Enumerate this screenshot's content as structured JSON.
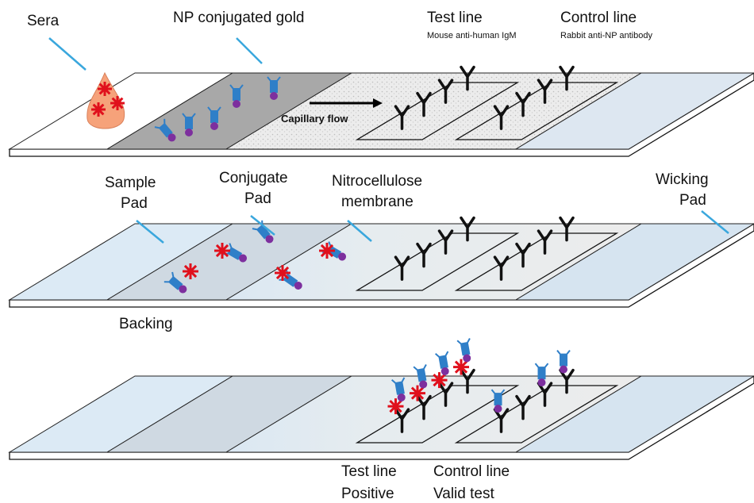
{
  "panel_1": {
    "sera": "Sera",
    "np_conjugated_gold": "NP conjugated gold",
    "test_line": {
      "title": "Test line",
      "subtitle": "Mouse anti-human IgM"
    },
    "control_line": {
      "title": "Control line",
      "subtitle": "Rabbit anti-NP antibody"
    },
    "flow": "Capillary flow"
  },
  "panel_2": {
    "sample_pad": [
      "Sample",
      "Pad"
    ],
    "conjugate_pad": [
      "Conjugate",
      "Pad"
    ],
    "membrane": [
      "Nitrocellulose",
      "membrane"
    ],
    "wicking_pad": [
      "Wicking",
      "Pad"
    ],
    "backing": "Backing"
  },
  "panel_3": {
    "test_line": [
      "Test line",
      "Positive"
    ],
    "control_line": [
      "Control line",
      "Valid test"
    ]
  }
}
